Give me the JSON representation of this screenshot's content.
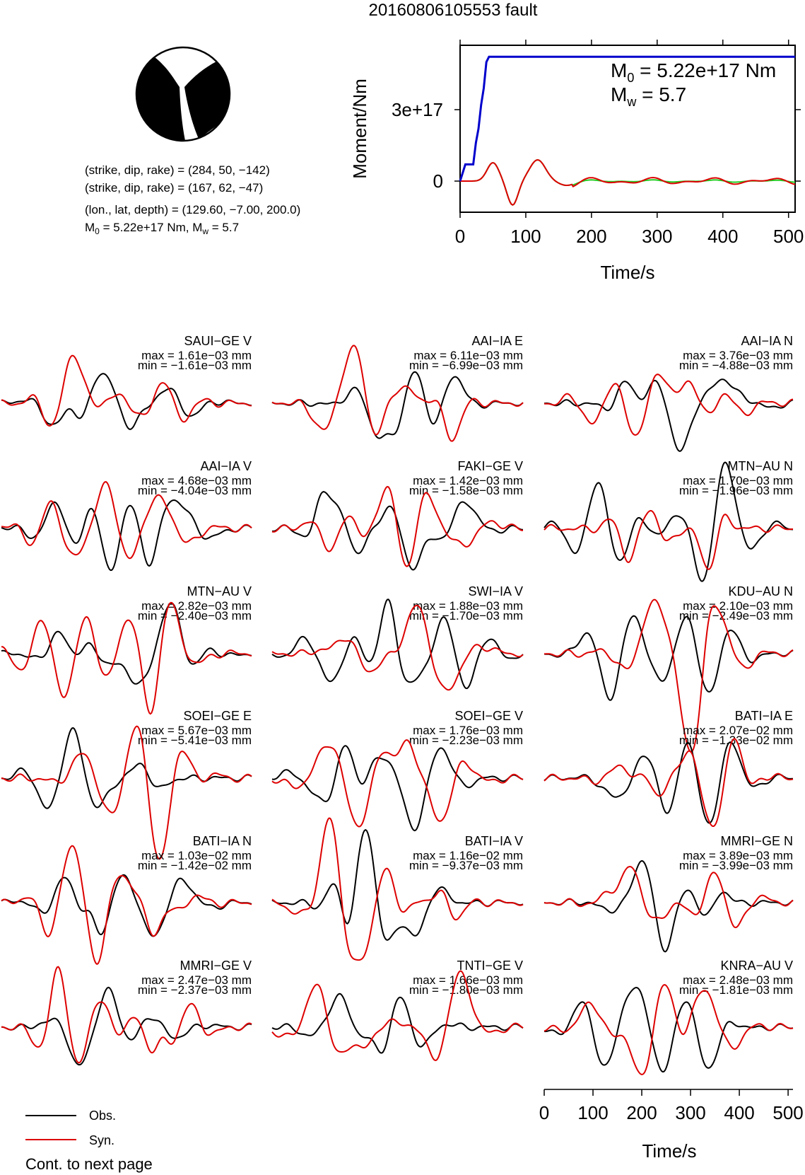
{
  "title": "20160806105553 fault",
  "mechanism": {
    "line1": "(strike, dip, rake) = (284, 50, −142)",
    "line2": "(strike, dip, rake) = (167, 62, −47)",
    "line3": "(lon., lat, depth) = (129.60, −7.00, 200.0)",
    "m0_label": "M",
    "m0_sub": "0",
    "m0_text": " = 5.22e+17 Nm, M",
    "mw_sub": "w",
    "mw_text": " = 5.7"
  },
  "colors": {
    "observed": "#000000",
    "synthetic": "#dd0000",
    "moment": "#0000cc",
    "stf": "#22cc22",
    "beachball": "#000000"
  },
  "chart_data": [
    {
      "type": "line",
      "name": "moment-function",
      "xlabel": "Time/s",
      "ylabel": "Moment/Nm",
      "xlim": [
        0,
        510
      ],
      "ylim": [
        -4e+16,
        3.8e+17
      ],
      "xticks": [
        0,
        100,
        200,
        300,
        400,
        500
      ],
      "xtick_labels": [
        "0",
        "100",
        "200",
        "300",
        "400",
        "500"
      ],
      "yticks": [
        0,
        3e+17
      ],
      "ytick_labels": [
        "0",
        "3e+17"
      ],
      "annotation": {
        "m0_prefix": "M",
        "m0_sub": "0",
        "m0_value": " = 5.22e+17 Nm",
        "mw_prefix": "M",
        "mw_sub": "w",
        "mw_value": " = 5.7"
      },
      "moment_x": [
        0,
        8,
        12,
        20,
        24,
        28,
        32,
        36,
        40,
        44,
        510
      ],
      "moment_y": [
        0,
        7e+16,
        7e+16,
        7e+16,
        1.6e+17,
        2.2e+17,
        3.2e+17,
        3.9e+17,
        5e+17,
        5.22e+17,
        5.22e+17
      ]
    },
    {
      "type": "line",
      "name": "waveforms",
      "xlabel": "Time/s",
      "xlim": [
        0,
        510
      ],
      "xticks": [
        0,
        100,
        200,
        300,
        400,
        500
      ],
      "xtick_labels": [
        "0",
        "100",
        "200",
        "300",
        "400",
        "500"
      ],
      "legend": {
        "position": "bottom-left",
        "observed": "Obs.",
        "synthetic": "Syn."
      },
      "footer": "Cont. to next page",
      "traces": [
        {
          "station": "SAUI−GE V",
          "max": "max = 1.61e−03 mm",
          "min": "min = −1.61e−03 mm"
        },
        {
          "station": "AAI−IA E",
          "max": "max = 6.11e−03 mm",
          "min": "min = −6.99e−03 mm"
        },
        {
          "station": "AAI−IA N",
          "max": "max = 3.76e−03 mm",
          "min": "min = −4.88e−03 mm"
        },
        {
          "station": "AAI−IA V",
          "max": "max = 4.68e−03 mm",
          "min": "min = −4.04e−03 mm"
        },
        {
          "station": "FAKI−GE V",
          "max": "max = 1.42e−03 mm",
          "min": "min = −1.58e−03 mm"
        },
        {
          "station": "MTN−AU N",
          "max": "max = 1.70e−03 mm",
          "min": "min = −1.96e−03 mm"
        },
        {
          "station": "MTN−AU V",
          "max": "max = 2.82e−03 mm",
          "min": "min = −2.40e−03 mm"
        },
        {
          "station": "SWI−IA V",
          "max": "max = 1.88e−03 mm",
          "min": "min = −1.70e−03 mm"
        },
        {
          "station": "KDU−AU N",
          "max": "max = 2.10e−03 mm",
          "min": "min = −2.49e−03 mm"
        },
        {
          "station": "SOEI−GE E",
          "max": "max = 5.67e−03 mm",
          "min": "min = −5.41e−03 mm"
        },
        {
          "station": "SOEI−GE V",
          "max": "max = 1.76e−03 mm",
          "min": "min = −2.23e−03 mm"
        },
        {
          "station": "BATI−IA E",
          "max": "max = 2.07e−02 mm",
          "min": "min = −1.33e−02 mm"
        },
        {
          "station": "BATI−IA N",
          "max": "max = 1.03e−02 mm",
          "min": "min = −1.42e−02 mm"
        },
        {
          "station": "BATI−IA V",
          "max": "max = 1.16e−02 mm",
          "min": "min = −9.37e−03 mm"
        },
        {
          "station": "MMRI−GE N",
          "max": "max = 3.89e−03 mm",
          "min": "min = −3.99e−03 mm"
        },
        {
          "station": "MMRI−GE V",
          "max": "max = 2.47e−03 mm",
          "min": "min = −2.37e−03 mm"
        },
        {
          "station": "TNTI−GE V",
          "max": "max = 1.66e−03 mm",
          "min": "min = −1.80e−03 mm"
        },
        {
          "station": "KNRA−AU V",
          "max": "max = 2.48e−03 mm",
          "min": "min = −1.81e−03 mm"
        }
      ]
    }
  ]
}
